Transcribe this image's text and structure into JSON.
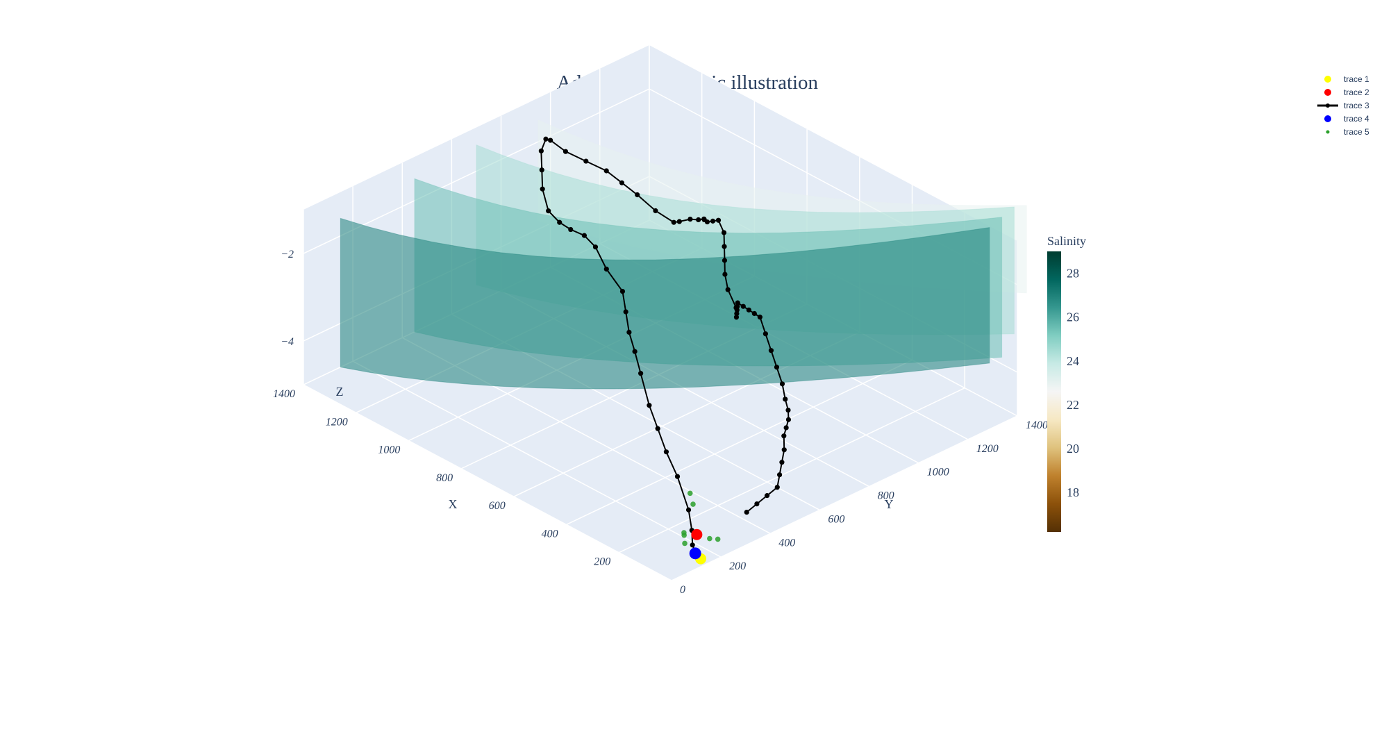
{
  "chart_data": {
    "type": "scatter3d+surface",
    "title": "Adaptive 3D myopic illustration",
    "scene": {
      "xaxis": {
        "title": "X",
        "ticks": [
          200,
          400,
          600,
          800,
          1000,
          1200,
          1400
        ],
        "range": [
          0,
          1400
        ]
      },
      "yaxis": {
        "title": "Y",
        "ticks": [
          0,
          200,
          400,
          600,
          800,
          1000,
          1200,
          1400
        ],
        "range": [
          0,
          1400
        ]
      },
      "zaxis": {
        "title": "Z",
        "ticks": [
          -4,
          -2
        ],
        "tick_labels": [
          "−4",
          "−2"
        ],
        "range": [
          -5,
          -1
        ]
      }
    },
    "colorbar": {
      "title": "Salinity",
      "ticks": [
        18,
        20,
        22,
        24,
        26,
        28
      ],
      "range": [
        16.2,
        29
      ],
      "colorscale": [
        "#543005",
        "#8c510a",
        "#bf812d",
        "#dfc27d",
        "#f6e8c3",
        "#f5f5f5",
        "#c7eae5",
        "#80cdc1",
        "#35978f",
        "#01665e",
        "#003c30"
      ]
    },
    "legend": [
      {
        "name": "trace 1",
        "symbol": "marker",
        "color": "#ffff00"
      },
      {
        "name": "trace 2",
        "symbol": "marker",
        "color": "#ff0000"
      },
      {
        "name": "trace 3",
        "symbol": "line-marker",
        "color": "#000000"
      },
      {
        "name": "trace 4",
        "symbol": "marker",
        "color": "#0000ff"
      },
      {
        "name": "trace 5",
        "symbol": "small-marker",
        "color": "#2ca02c"
      }
    ],
    "traces": [
      {
        "name": "trace 1",
        "mode": "markers",
        "x": [
          30
        ],
        "y": [
          150
        ],
        "z": [
          -5.0
        ]
      },
      {
        "name": "trace 2",
        "mode": "markers",
        "x": [
          120
        ],
        "y": [
          230
        ],
        "z": [
          -4.95
        ]
      },
      {
        "name": "trace 4",
        "mode": "markers",
        "x": [
          60
        ],
        "y": [
          160
        ],
        "z": [
          -5.0
        ]
      },
      {
        "name": "trace 5",
        "mode": "markers",
        "x": [
          100,
          140,
          90,
          150,
          40,
          200,
          230
        ],
        "y": [
          160,
          200,
          250,
          210,
          230,
          300,
          320
        ],
        "z": [
          -4.9,
          -4.95,
          -5.0,
          -4.95,
          -4.8,
          -4.7,
          -4.6
        ]
      },
      {
        "name": "trace 3",
        "mode": "lines+markers",
        "x": [
          30,
          80,
          120,
          170,
          250,
          330,
          400,
          470,
          540,
          600,
          650,
          700,
          750,
          830,
          900,
          980,
          1060,
          1140,
          1220,
          1280,
          1320,
          1360,
          1380,
          1400,
          1380,
          1340,
          1300,
          1260,
          1220,
          1160,
          1100,
          1060,
          1000,
          950,
          910,
          890,
          860,
          820,
          780,
          740,
          720,
          700,
          680,
          650,
          600,
          580,
          560,
          540,
          520,
          500,
          460,
          420,
          380,
          340,
          300,
          260,
          220,
          180,
          150,
          120,
          100,
          90,
          80,
          60,
          50,
          40,
          30,
          50,
          70,
          90
        ],
        "y": [
          140,
          170,
          210,
          250,
          290,
          330,
          370,
          410,
          450,
          490,
          520,
          560,
          600,
          620,
          650,
          690,
          720,
          760,
          800,
          840,
          880,
          920,
          960,
          1000,
          1040,
          1080,
          1120,
          1140,
          1160,
          1170,
          1180,
          1160,
          1140,
          1120,
          1100,
          1080,
          1060,
          1040,
          1020,
          1000,
          980,
          960,
          940,
          920,
          900,
          880,
          860,
          840,
          820,
          800,
          780,
          760,
          740,
          720,
          700,
          680,
          660,
          640,
          620,
          600,
          580,
          560,
          540,
          520,
          500,
          480,
          460,
          440,
          420,
          400
        ],
        "z": [
          -5.0,
          -4.9,
          -4.8,
          -4.6,
          -4.2,
          -4.0,
          -3.8,
          -3.6,
          -3.2,
          -3.0,
          -2.8,
          -2.6,
          -2.4,
          -2.2,
          -2.0,
          -2.1,
          -2.3,
          -2.5,
          -2.6,
          -2.4,
          -2.2,
          -2.0,
          -1.9,
          -2.1,
          -2.4,
          -2.6,
          -2.8,
          -3.0,
          -3.2,
          -3.4,
          -3.5,
          -3.3,
          -3.0,
          -2.8,
          -2.6,
          -2.5,
          -2.4,
          -2.2,
          -2.0,
          -2.1,
          -2.3,
          -2.5,
          -2.7,
          -2.9,
          -3.1,
          -3.2,
          -3.0,
          -2.8,
          -2.6,
          -2.4,
          -2.3,
          -2.2,
          -2.1,
          -2.0,
          -2.2,
          -2.4,
          -2.6,
          -2.8,
          -3.0,
          -3.1,
          -3.2,
          -3.3,
          -3.4,
          -3.6,
          -3.8,
          -4.0,
          -4.2,
          -4.4,
          -4.6,
          -4.8
        ]
      },
      {
        "name": "salinity-isosurface",
        "type": "surface",
        "layers": [
          {
            "value": 27.0,
            "x0": 1400,
            "x1": 200,
            "y_at_x0": 150,
            "y_at_x1": 1500,
            "z_top": -1.6,
            "z_bot": -5.0
          },
          {
            "value": 25.5,
            "x0": 1400,
            "x1": 200,
            "y_at_x0": 450,
            "y_at_x1": 1550,
            "z_top": -1.5,
            "z_bot": -5.0
          },
          {
            "value": 24.5,
            "x0": 1400,
            "x1": 200,
            "y_at_x0": 700,
            "y_at_x1": 1600,
            "z_top": -1.4,
            "z_bot": -4.6
          },
          {
            "value": 23.0,
            "x0": 1400,
            "x1": 200,
            "y_at_x0": 950,
            "y_at_x1": 1650,
            "z_top": -1.5,
            "z_bot": -3.8
          }
        ]
      }
    ]
  }
}
